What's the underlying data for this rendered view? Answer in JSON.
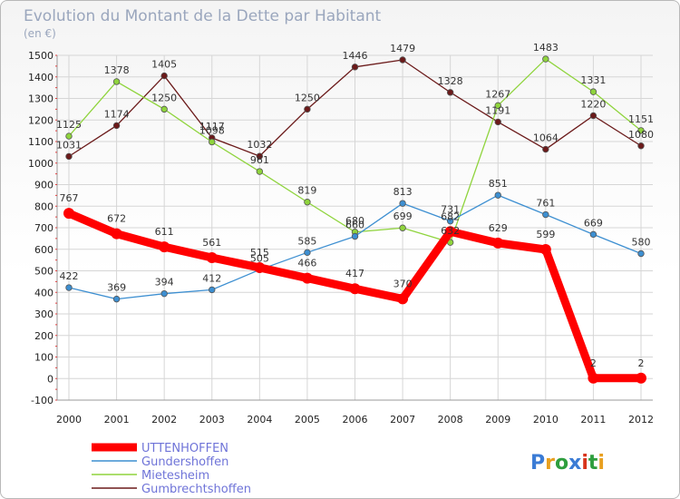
{
  "chart_data": {
    "type": "line",
    "title": "Evolution du Montant de la Dette par Habitant",
    "subtitle": "(en €)",
    "xlabel": "",
    "ylabel": "",
    "x": [
      "2000",
      "2001",
      "2002",
      "2003",
      "2004",
      "2005",
      "2006",
      "2007",
      "2008",
      "2009",
      "2010",
      "2011",
      "2012"
    ],
    "ylim": [
      -100,
      1500
    ],
    "yticks": [
      -100,
      0,
      100,
      200,
      300,
      400,
      500,
      600,
      700,
      800,
      900,
      1000,
      1100,
      1200,
      1300,
      1400,
      1500
    ],
    "grid": true,
    "legend_position": "bottom-left",
    "series": [
      {
        "name": "UTTENHOFFEN",
        "color": "#ff0000",
        "values": [
          767,
          672,
          611,
          561,
          515,
          466,
          417,
          370,
          682,
          629,
          599,
          2,
          2
        ]
      },
      {
        "name": "Gundershoffen",
        "color": "#3d8fd1",
        "values": [
          422,
          369,
          394,
          412,
          505,
          585,
          660,
          813,
          731,
          851,
          761,
          669,
          580
        ]
      },
      {
        "name": "Mietesheim",
        "color": "#8fd43d",
        "values": [
          1125,
          1378,
          1250,
          1098,
          961,
          819,
          680,
          699,
          632,
          1267,
          1483,
          1331,
          1151
        ]
      },
      {
        "name": "Gumbrechtshoffen",
        "color": "#6b1a1a",
        "values": [
          1031,
          1174,
          1405,
          1117,
          1032,
          1250,
          1446,
          1479,
          1328,
          1191,
          1064,
          1220,
          1080
        ]
      }
    ]
  },
  "brand": {
    "logo_text": "Proxiti",
    "logo_colors": [
      "#3a7bd5",
      "#e8a020",
      "#2e9e3e",
      "#3a7bd5",
      "#d8331a",
      "#2e9e3e",
      "#e8a020"
    ]
  }
}
